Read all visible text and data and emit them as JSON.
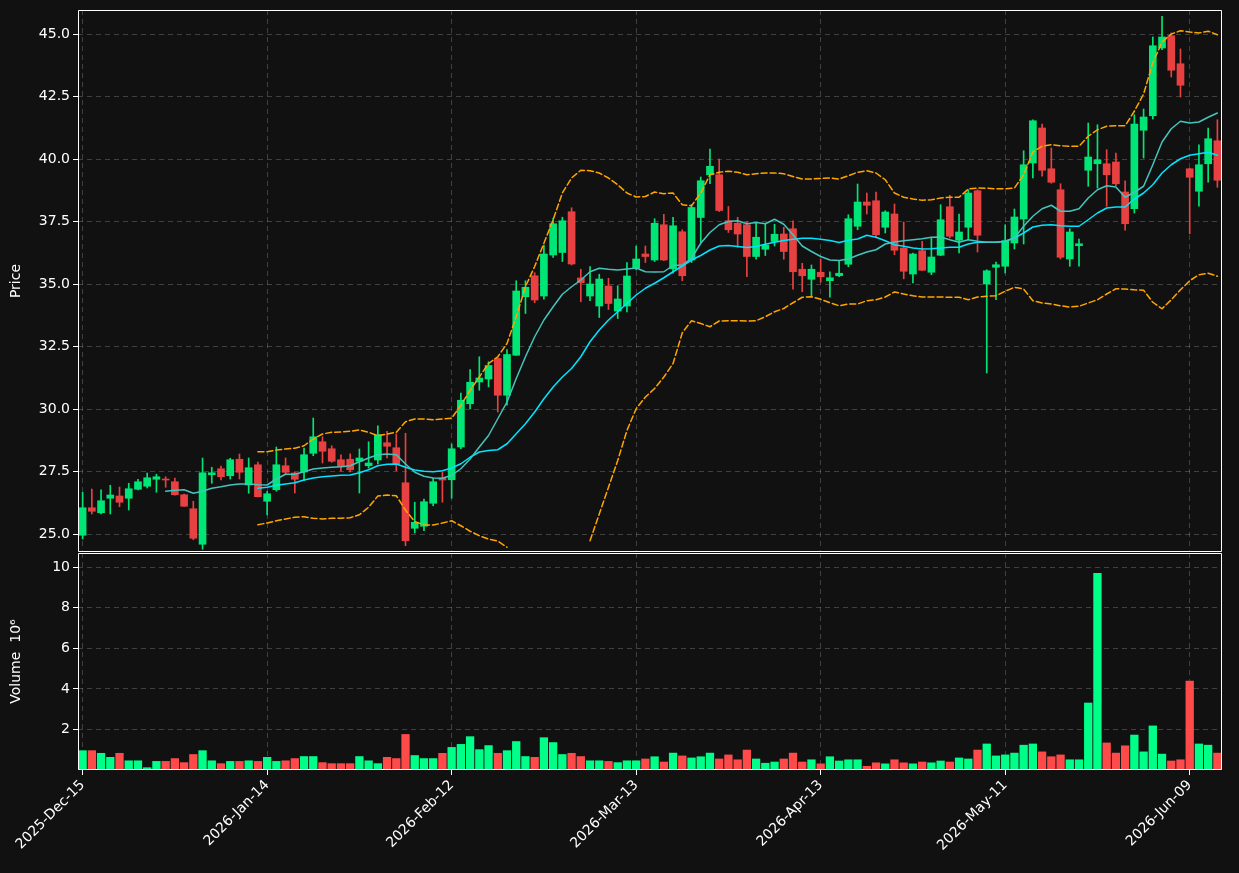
{
  "chart_data": [
    {
      "type": "candlestick",
      "ylabel": "Price",
      "categories": [
        null,
        null,
        null,
        null,
        null,
        null,
        null,
        null,
        null,
        null,
        null,
        null,
        null,
        null,
        null,
        null,
        null,
        null,
        null,
        null,
        null,
        null,
        null,
        null,
        null,
        null,
        null,
        null,
        null,
        null,
        null,
        null,
        null,
        null,
        null,
        null,
        null,
        null,
        null,
        null,
        null,
        null,
        null,
        null,
        null,
        null,
        null,
        null,
        null,
        null,
        null,
        null,
        null,
        null,
        null,
        null,
        null,
        null,
        null,
        null,
        null,
        null,
        null,
        null,
        null,
        null,
        null,
        null,
        null,
        null,
        null,
        null,
        null,
        null,
        null,
        null,
        null,
        null,
        null,
        null,
        null,
        null,
        null,
        null,
        null,
        null,
        null,
        null,
        null,
        null,
        null,
        null,
        null,
        null,
        null,
        null,
        null,
        null,
        null,
        null,
        null,
        null,
        null,
        null,
        null,
        null,
        null,
        null,
        null,
        null,
        null,
        null,
        null,
        null,
        null,
        null,
        null,
        null,
        null,
        null,
        null,
        null,
        null,
        null
      ],
      "ohlc": [
        [
          24.95,
          26.67,
          24.8,
          26.05
        ],
        [
          26.05,
          26.8,
          25.8,
          25.91
        ],
        [
          25.85,
          26.77,
          25.8,
          26.33
        ],
        [
          26.43,
          26.95,
          25.8,
          26.56
        ],
        [
          26.52,
          26.88,
          26.09,
          26.27
        ],
        [
          26.43,
          27.03,
          25.96,
          26.81
        ],
        [
          26.79,
          27.19,
          26.76,
          27.09
        ],
        [
          26.91,
          27.44,
          26.84,
          27.25
        ],
        [
          27.19,
          27.39,
          26.67,
          27.29
        ],
        [
          27.19,
          27.29,
          26.87,
          27.16
        ],
        [
          27.09,
          27.24,
          26.55,
          26.57
        ],
        [
          26.57,
          26.6,
          26.1,
          26.11
        ],
        [
          26.01,
          26.31,
          24.77,
          24.83
        ],
        [
          24.59,
          28.04,
          24.39,
          27.45
        ],
        [
          27.37,
          27.67,
          27.03,
          27.45
        ],
        [
          27.61,
          27.72,
          27.16,
          27.29
        ],
        [
          27.33,
          28.03,
          27.2,
          27.97
        ],
        [
          27.99,
          28.2,
          27.2,
          27.47
        ],
        [
          26.96,
          28.04,
          26.63,
          27.65
        ],
        [
          27.77,
          27.88,
          26.48,
          26.49
        ],
        [
          26.31,
          26.71,
          25.76,
          26.61
        ],
        [
          26.77,
          28.48,
          26.71,
          27.77
        ],
        [
          27.73,
          28.04,
          27.4,
          27.47
        ],
        [
          27.44,
          27.47,
          26.64,
          27.19
        ],
        [
          27.48,
          28.44,
          27.13,
          28.17
        ],
        [
          28.23,
          29.64,
          28.13,
          28.89
        ],
        [
          28.69,
          28.89,
          27.84,
          28.31
        ],
        [
          28.41,
          28.53,
          27.87,
          27.91
        ],
        [
          27.97,
          28.17,
          27.51,
          27.69
        ],
        [
          27.99,
          28.21,
          27.48,
          27.57
        ],
        [
          27.91,
          28.4,
          26.64,
          28.04
        ],
        [
          27.73,
          28.69,
          27.64,
          27.84
        ],
        [
          27.96,
          29.33,
          27.8,
          28.97
        ],
        [
          28.65,
          29.11,
          28.04,
          28.51
        ],
        [
          28.45,
          29.0,
          27.53,
          27.79
        ],
        [
          27.05,
          29.03,
          24.53,
          24.73
        ],
        [
          25.23,
          26.27,
          25.04,
          25.47
        ],
        [
          25.31,
          26.4,
          25.13,
          26.29
        ],
        [
          26.23,
          27.23,
          26.13,
          27.09
        ],
        [
          27.24,
          27.47,
          26.27,
          27.16
        ],
        [
          27.17,
          28.6,
          26.43,
          28.41
        ],
        [
          28.48,
          30.64,
          28.41,
          30.35
        ],
        [
          30.21,
          31.58,
          30.01,
          31.07
        ],
        [
          31.08,
          32.09,
          30.75,
          31.24
        ],
        [
          31.2,
          31.89,
          30.88,
          31.74
        ],
        [
          32.02,
          32.05,
          29.88,
          30.55
        ],
        [
          30.55,
          32.38,
          30.15,
          32.18
        ],
        [
          32.15,
          35.13,
          32.15,
          34.72
        ],
        [
          34.49,
          35.13,
          33.82,
          34.87
        ],
        [
          35.33,
          35.45,
          34.25,
          34.36
        ],
        [
          34.52,
          36.56,
          34.39,
          36.2
        ],
        [
          36.16,
          37.63,
          36.06,
          37.41
        ],
        [
          36.26,
          37.67,
          35.9,
          37.53
        ],
        [
          37.89,
          38.05,
          35.76,
          35.8
        ],
        [
          35.24,
          35.59,
          34.29,
          35.05
        ],
        [
          34.52,
          35.7,
          34.33,
          35.0
        ],
        [
          34.12,
          35.39,
          33.66,
          35.2
        ],
        [
          34.92,
          35.23,
          33.98,
          34.22
        ],
        [
          33.92,
          34.93,
          33.62,
          34.4
        ],
        [
          34.12,
          35.86,
          33.88,
          35.32
        ],
        [
          35.63,
          36.52,
          35.56,
          36.0
        ],
        [
          36.2,
          36.52,
          35.86,
          36.1
        ],
        [
          35.96,
          37.61,
          35.9,
          37.43
        ],
        [
          37.37,
          37.79,
          35.93,
          35.96
        ],
        [
          35.61,
          37.67,
          35.43,
          37.33
        ],
        [
          37.09,
          37.17,
          35.13,
          35.33
        ],
        [
          35.96,
          38.17,
          35.86,
          38.06
        ],
        [
          37.66,
          39.28,
          36.66,
          39.13
        ],
        [
          39.37,
          40.4,
          39.01,
          39.71
        ],
        [
          39.37,
          40.0,
          37.9,
          37.94
        ],
        [
          37.53,
          38.1,
          37.06,
          37.17
        ],
        [
          37.43,
          37.67,
          36.47,
          37.0
        ],
        [
          37.37,
          37.5,
          35.29,
          36.1
        ],
        [
          36.1,
          37.43,
          35.99,
          36.87
        ],
        [
          36.39,
          37.39,
          36.14,
          36.56
        ],
        [
          36.7,
          37.39,
          36.52,
          36.99
        ],
        [
          37.0,
          37.27,
          35.99,
          36.3
        ],
        [
          37.21,
          37.53,
          34.79,
          35.49
        ],
        [
          35.59,
          35.83,
          34.69,
          35.33
        ],
        [
          35.19,
          35.76,
          34.53,
          35.59
        ],
        [
          35.47,
          36.0,
          35.07,
          35.29
        ],
        [
          35.13,
          35.49,
          34.47,
          35.25
        ],
        [
          35.33,
          35.92,
          35.29,
          35.43
        ],
        [
          35.79,
          37.77,
          35.69,
          37.61
        ],
        [
          37.31,
          39.0,
          37.17,
          38.28
        ],
        [
          38.28,
          38.64,
          37.8,
          38.15
        ],
        [
          38.33,
          38.68,
          36.84,
          36.97
        ],
        [
          37.27,
          37.93,
          37.04,
          37.88
        ],
        [
          37.8,
          38.2,
          36.17,
          36.35
        ],
        [
          36.44,
          37.48,
          35.21,
          35.51
        ],
        [
          35.4,
          36.24,
          35.04,
          36.2
        ],
        [
          36.33,
          36.71,
          35.53,
          35.55
        ],
        [
          35.47,
          36.87,
          35.37,
          36.08
        ],
        [
          36.15,
          38.17,
          36.13,
          37.57
        ],
        [
          38.09,
          38.55,
          36.84,
          36.91
        ],
        [
          36.75,
          37.8,
          36.24,
          37.08
        ],
        [
          37.27,
          38.77,
          36.77,
          38.64
        ],
        [
          38.73,
          38.77,
          36.28,
          36.95
        ],
        [
          35.0,
          35.57,
          31.44,
          35.53
        ],
        [
          35.67,
          35.88,
          34.37,
          35.77
        ],
        [
          35.71,
          37.37,
          35.44,
          36.73
        ],
        [
          36.64,
          38.0,
          36.4,
          37.68
        ],
        [
          37.6,
          40.33,
          36.6,
          39.77
        ],
        [
          39.84,
          41.57,
          39.24,
          41.53
        ],
        [
          41.24,
          41.4,
          39.31,
          39.55
        ],
        [
          39.61,
          40.44,
          39.03,
          39.07
        ],
        [
          38.77,
          39.01,
          36.0,
          36.07
        ],
        [
          36.0,
          37.21,
          35.71,
          37.08
        ],
        [
          36.53,
          36.8,
          35.71,
          36.61
        ],
        [
          39.55,
          41.44,
          38.91,
          40.08
        ],
        [
          39.81,
          41.37,
          38.84,
          39.97
        ],
        [
          39.81,
          40.37,
          38.11,
          39.37
        ],
        [
          39.88,
          40.24,
          38.93,
          39.01
        ],
        [
          38.68,
          39.13,
          37.15,
          37.41
        ],
        [
          38.01,
          41.77,
          37.84,
          41.4
        ],
        [
          41.15,
          42.0,
          40.04,
          41.68
        ],
        [
          41.73,
          44.88,
          41.6,
          44.53
        ],
        [
          44.44,
          45.71,
          44.37,
          44.88
        ],
        [
          44.93,
          45.04,
          43.28,
          43.55
        ],
        [
          43.81,
          44.4,
          42.48,
          42.95
        ],
        [
          39.61,
          39.63,
          37.01,
          39.27
        ],
        [
          38.71,
          40.57,
          38.11,
          39.77
        ],
        [
          39.81,
          41.24,
          39.07,
          40.81
        ],
        [
          40.73,
          41.57,
          38.87,
          39.15
        ]
      ],
      "colors": [
        "#00e676",
        "#e84142",
        "#00e676",
        "#00e676",
        "#e84142",
        "#00e676",
        "#00e676",
        "#00e676",
        "#00e676",
        "#e84142",
        "#e84142",
        "#e84142",
        "#e84142",
        "#00e676",
        "#00e676",
        "#e84142",
        "#00e676",
        "#e84142",
        "#00e676",
        "#e84142",
        "#00e676",
        "#00e676",
        "#e84142",
        "#e84142",
        "#00e676",
        "#00e676",
        "#e84142",
        "#e84142",
        "#e84142",
        "#e84142",
        "#00e676",
        "#00e676",
        "#00e676",
        "#e84142",
        "#e84142",
        "#e84142",
        "#00e676",
        "#00e676",
        "#00e676",
        "#e84142",
        "#00e676",
        "#00e676",
        "#00e676",
        "#00e676",
        "#00e676",
        "#e84142",
        "#00e676",
        "#00e676",
        "#00e676",
        "#e84142",
        "#00e676",
        "#00e676",
        "#00e676",
        "#e84142",
        "#e84142",
        "#00e676",
        "#00e676",
        "#e84142",
        "#00e676",
        "#00e676",
        "#00e676",
        "#e84142",
        "#00e676",
        "#e84142",
        "#00e676",
        "#e84142",
        "#00e676",
        "#00e676",
        "#00e676",
        "#e84142",
        "#e84142",
        "#e84142",
        "#e84142",
        "#00e676",
        "#00e676",
        "#00e676",
        "#e84142",
        "#e84142",
        "#e84142",
        "#00e676",
        "#e84142",
        "#00e676",
        "#00e676",
        "#00e676",
        "#00e676",
        "#e84142",
        "#e84142",
        "#00e676",
        "#e84142",
        "#e84142",
        "#00e676",
        "#e84142",
        "#00e676",
        "#00e676",
        "#e84142",
        "#00e676",
        "#00e676",
        "#e84142",
        "#00e676",
        "#00e676",
        "#00e676",
        "#00e676",
        "#00e676",
        "#00e676",
        "#e84142",
        "#e84142",
        "#e84142",
        "#00e676",
        "#00e676",
        "#00e676",
        "#00e676",
        "#e84142",
        "#e84142",
        "#e84142",
        "#00e676",
        "#00e676",
        "#00e676",
        "#00e676",
        "#e84142",
        "#e84142",
        "#e84142",
        "#00e676",
        "#00e676",
        "#e84142"
      ],
      "series": [
        {
          "type": "line",
          "color": "#45c4bd",
          "values": [
            null,
            null,
            null,
            null,
            null,
            null,
            null,
            null,
            null,
            26.71,
            26.75,
            26.77,
            26.63,
            26.71,
            26.83,
            26.89,
            26.96,
            27.0,
            27.0,
            26.97,
            26.96,
            27.2,
            27.39,
            27.39,
            27.49,
            27.6,
            27.64,
            27.67,
            27.69,
            27.73,
            27.89,
            28.04,
            28.17,
            28.2,
            28.17,
            27.8,
            27.47,
            27.31,
            27.24,
            27.23,
            27.35,
            27.61,
            28.0,
            28.48,
            28.94,
            29.61,
            30.28,
            31.22,
            32.09,
            32.89,
            33.56,
            34.09,
            34.59,
            34.89,
            35.16,
            35.49,
            35.63,
            35.59,
            35.56,
            35.6,
            35.64,
            35.49,
            35.48,
            35.49,
            35.74,
            35.76,
            36.03,
            36.63,
            37.06,
            37.37,
            37.5,
            37.53,
            37.41,
            37.46,
            37.41,
            37.59,
            37.39,
            36.97,
            36.52,
            36.3,
            36.1,
            35.96,
            35.94,
            36.0,
            36.15,
            36.28,
            36.37,
            36.6,
            36.68,
            36.73,
            36.77,
            36.81,
            36.87,
            36.88,
            36.77,
            36.67,
            36.77,
            36.71,
            36.67,
            36.67,
            36.71,
            36.84,
            37.31,
            37.71,
            38.01,
            38.15,
            37.91,
            37.91,
            38.01,
            38.44,
            38.77,
            38.93,
            38.88,
            38.47,
            38.67,
            38.91,
            39.77,
            40.68,
            41.21,
            41.51,
            41.44,
            41.48,
            41.67,
            41.84
          ]
        },
        {
          "type": "line",
          "color": "#00e5ff",
          "values": [
            null,
            null,
            null,
            null,
            null,
            null,
            null,
            null,
            null,
            null,
            null,
            null,
            null,
            null,
            null,
            null,
            null,
            null,
            null,
            26.83,
            26.87,
            26.95,
            27.0,
            27.05,
            27.16,
            27.24,
            27.29,
            27.32,
            27.35,
            27.36,
            27.45,
            27.57,
            27.73,
            27.79,
            27.8,
            27.67,
            27.56,
            27.51,
            27.49,
            27.53,
            27.64,
            27.81,
            28.07,
            28.28,
            28.34,
            28.37,
            28.61,
            29.01,
            29.41,
            29.88,
            30.41,
            30.88,
            31.28,
            31.62,
            32.09,
            32.69,
            33.16,
            33.56,
            33.89,
            34.22,
            34.56,
            34.83,
            35.03,
            35.25,
            35.49,
            35.72,
            35.96,
            36.14,
            36.36,
            36.52,
            36.54,
            36.5,
            36.46,
            36.5,
            36.59,
            36.67,
            36.74,
            36.79,
            36.83,
            36.83,
            36.79,
            36.74,
            36.66,
            36.75,
            36.8,
            36.95,
            36.87,
            36.73,
            36.57,
            36.51,
            36.44,
            36.4,
            36.41,
            36.44,
            36.47,
            36.47,
            36.6,
            36.67,
            36.67,
            36.67,
            36.71,
            36.84,
            37.04,
            37.28,
            37.35,
            37.37,
            37.33,
            37.31,
            37.31,
            37.57,
            37.84,
            38.04,
            38.08,
            38.08,
            38.4,
            38.64,
            38.97,
            39.44,
            39.77,
            40.01,
            40.15,
            40.21,
            40.27,
            40.15
          ]
        },
        {
          "type": "line",
          "color": "#ffa500",
          "line_style": "dashed",
          "values": [
            null,
            null,
            null,
            null,
            null,
            null,
            null,
            null,
            null,
            null,
            null,
            null,
            null,
            null,
            null,
            null,
            null,
            null,
            null,
            28.29,
            28.29,
            28.36,
            28.4,
            28.43,
            28.53,
            28.8,
            29.0,
            29.07,
            29.08,
            29.11,
            29.16,
            29.07,
            28.93,
            29.0,
            29.07,
            29.49,
            29.6,
            29.6,
            29.57,
            29.6,
            29.63,
            30.15,
            30.75,
            31.28,
            31.82,
            32.09,
            32.62,
            33.69,
            34.89,
            35.7,
            36.63,
            37.57,
            38.64,
            39.24,
            39.55,
            39.53,
            39.44,
            39.24,
            38.97,
            38.64,
            38.48,
            38.5,
            38.68,
            38.61,
            38.64,
            38.17,
            38.13,
            38.64,
            39.37,
            39.47,
            39.51,
            39.47,
            39.37,
            39.41,
            39.44,
            39.44,
            39.41,
            39.3,
            39.2,
            39.2,
            39.22,
            39.24,
            39.2,
            39.33,
            39.47,
            39.53,
            39.44,
            39.17,
            38.64,
            38.47,
            38.4,
            38.35,
            38.37,
            38.44,
            38.47,
            38.47,
            38.8,
            38.84,
            38.83,
            38.81,
            38.81,
            38.84,
            39.37,
            40.28,
            40.51,
            40.57,
            40.53,
            40.51,
            40.51,
            40.91,
            41.17,
            41.31,
            41.33,
            41.33,
            41.91,
            42.6,
            43.84,
            44.68,
            45.0,
            45.13,
            45.08,
            45.04,
            45.11,
            44.97
          ]
        },
        {
          "type": "line",
          "color": "#ffa500",
          "line_style": "dashed",
          "values": [
            null,
            null,
            null,
            null,
            null,
            null,
            null,
            null,
            null,
            null,
            null,
            null,
            null,
            null,
            null,
            null,
            null,
            null,
            null,
            25.37,
            25.44,
            25.53,
            25.6,
            25.67,
            25.69,
            25.63,
            25.6,
            25.63,
            25.63,
            25.65,
            25.77,
            26.07,
            26.52,
            26.56,
            26.53,
            25.96,
            25.49,
            25.37,
            25.36,
            25.44,
            25.53,
            25.33,
            25.11,
            24.93,
            24.8,
            24.72,
            24.47,
            null,
            null,
            null,
            null,
            null,
            null,
            null,
            null,
            24.73,
            25.8,
            26.87,
            27.94,
            29.14,
            30.01,
            30.48,
            30.82,
            31.28,
            31.82,
            33.05,
            33.53,
            33.42,
            33.29,
            33.52,
            33.53,
            33.53,
            33.52,
            33.53,
            33.69,
            33.89,
            34.02,
            34.25,
            34.47,
            34.49,
            34.39,
            34.25,
            34.13,
            34.2,
            34.2,
            34.33,
            34.37,
            34.48,
            34.68,
            34.6,
            34.53,
            34.48,
            34.48,
            34.48,
            34.47,
            34.47,
            34.37,
            34.48,
            34.51,
            34.53,
            34.71,
            34.87,
            34.8,
            34.33,
            34.24,
            34.2,
            34.13,
            34.08,
            34.11,
            34.24,
            34.37,
            34.6,
            34.81,
            34.8,
            34.77,
            34.75,
            34.27,
            34.01,
            34.37,
            34.77,
            35.13,
            35.37,
            35.43,
            35.31
          ]
        }
      ],
      "ylim": [
        24.28,
        45.96
      ],
      "yticks": [
        {
          "value": 25,
          "label": "25.0"
        },
        {
          "value": 27.5,
          "label": "27.5"
        },
        {
          "value": 30,
          "label": "30.0"
        },
        {
          "value": 32.5,
          "label": "32.5"
        },
        {
          "value": 35,
          "label": "35.0"
        },
        {
          "value": 37.5,
          "label": "37.5"
        },
        {
          "value": 40,
          "label": "40.0"
        },
        {
          "value": 42.5,
          "label": "42.5"
        },
        {
          "value": 45,
          "label": "45.0"
        }
      ],
      "grid": true,
      "tick_labels": "y"
    },
    {
      "type": "bar",
      "ylabel": "Volume  10⁶",
      "categories": [
        "2025-Dec-15",
        null,
        null,
        null,
        null,
        null,
        null,
        null,
        null,
        null,
        null,
        null,
        null,
        null,
        null,
        null,
        null,
        null,
        null,
        null,
        "2026-Jan-14",
        null,
        null,
        null,
        null,
        null,
        null,
        null,
        null,
        null,
        null,
        null,
        null,
        null,
        null,
        null,
        null,
        null,
        null,
        null,
        "2026-Feb-12",
        null,
        null,
        null,
        null,
        null,
        null,
        null,
        null,
        null,
        null,
        null,
        null,
        null,
        null,
        null,
        null,
        null,
        null,
        null,
        "2026-Mar-13",
        null,
        null,
        null,
        null,
        null,
        null,
        null,
        null,
        null,
        null,
        null,
        null,
        null,
        null,
        null,
        null,
        null,
        null,
        null,
        "2026-Apr-13",
        null,
        null,
        null,
        null,
        null,
        null,
        null,
        null,
        null,
        null,
        null,
        null,
        null,
        null,
        null,
        null,
        null,
        null,
        null,
        "2026-May-11",
        null,
        null,
        null,
        null,
        null,
        null,
        null,
        null,
        null,
        null,
        null,
        null,
        null,
        null,
        null,
        null,
        null,
        null,
        null,
        "2026-Jun-09",
        null,
        null,
        null
      ],
      "values": [
        0.97,
        0.97,
        0.84,
        0.64,
        0.84,
        0.47,
        0.47,
        0.13,
        0.44,
        0.44,
        0.58,
        0.38,
        0.78,
        0.97,
        0.47,
        0.33,
        0.44,
        0.44,
        0.47,
        0.44,
        0.64,
        0.44,
        0.47,
        0.58,
        0.68,
        0.68,
        0.38,
        0.33,
        0.33,
        0.33,
        0.68,
        0.47,
        0.33,
        0.64,
        0.58,
        1.77,
        0.73,
        0.58,
        0.58,
        0.84,
        1.13,
        1.28,
        1.66,
        1.02,
        1.22,
        0.84,
        0.97,
        1.42,
        0.68,
        0.64,
        1.61,
        1.37,
        0.78,
        0.84,
        0.68,
        0.47,
        0.47,
        0.44,
        0.38,
        0.47,
        0.47,
        0.56,
        0.67,
        0.41,
        0.85,
        0.71,
        0.61,
        0.67,
        0.85,
        0.56,
        0.76,
        0.52,
        1.0,
        0.56,
        0.35,
        0.41,
        0.56,
        0.85,
        0.41,
        0.52,
        0.32,
        0.67,
        0.46,
        0.52,
        0.52,
        0.2,
        0.37,
        0.32,
        0.52,
        0.37,
        0.32,
        0.41,
        0.37,
        0.46,
        0.41,
        0.61,
        0.56,
        1.0,
        1.3,
        0.71,
        0.76,
        0.85,
        1.24,
        1.3,
        0.91,
        0.67,
        0.76,
        0.52,
        0.52,
        3.32,
        9.72,
        1.35,
        0.85,
        1.21,
        1.74,
        0.91,
        2.19,
        0.8,
        0.46,
        0.52,
        4.4,
        1.3,
        1.24,
        0.85
      ],
      "colors": [
        "#00ff88",
        "#ff4a4a",
        "#00ff88",
        "#00ff88",
        "#ff4a4a",
        "#00ff88",
        "#00ff88",
        "#00ff88",
        "#00ff88",
        "#ff4a4a",
        "#ff4a4a",
        "#ff4a4a",
        "#ff4a4a",
        "#00ff88",
        "#00ff88",
        "#ff4a4a",
        "#00ff88",
        "#ff4a4a",
        "#00ff88",
        "#ff4a4a",
        "#00ff88",
        "#00ff88",
        "#ff4a4a",
        "#ff4a4a",
        "#00ff88",
        "#00ff88",
        "#ff4a4a",
        "#ff4a4a",
        "#ff4a4a",
        "#ff4a4a",
        "#00ff88",
        "#00ff88",
        "#00ff88",
        "#ff4a4a",
        "#ff4a4a",
        "#ff4a4a",
        "#00ff88",
        "#00ff88",
        "#00ff88",
        "#ff4a4a",
        "#00ff88",
        "#00ff88",
        "#00ff88",
        "#00ff88",
        "#00ff88",
        "#ff4a4a",
        "#00ff88",
        "#00ff88",
        "#00ff88",
        "#ff4a4a",
        "#00ff88",
        "#00ff88",
        "#00ff88",
        "#ff4a4a",
        "#ff4a4a",
        "#00ff88",
        "#00ff88",
        "#ff4a4a",
        "#00ff88",
        "#00ff88",
        "#00ff88",
        "#ff4a4a",
        "#00ff88",
        "#ff4a4a",
        "#00ff88",
        "#ff4a4a",
        "#00ff88",
        "#00ff88",
        "#00ff88",
        "#ff4a4a",
        "#ff4a4a",
        "#ff4a4a",
        "#ff4a4a",
        "#00ff88",
        "#00ff88",
        "#00ff88",
        "#ff4a4a",
        "#ff4a4a",
        "#ff4a4a",
        "#00ff88",
        "#ff4a4a",
        "#00ff88",
        "#00ff88",
        "#00ff88",
        "#00ff88",
        "#ff4a4a",
        "#ff4a4a",
        "#00ff88",
        "#ff4a4a",
        "#ff4a4a",
        "#00ff88",
        "#ff4a4a",
        "#00ff88",
        "#00ff88",
        "#ff4a4a",
        "#00ff88",
        "#00ff88",
        "#ff4a4a",
        "#00ff88",
        "#00ff88",
        "#00ff88",
        "#00ff88",
        "#00ff88",
        "#00ff88",
        "#ff4a4a",
        "#ff4a4a",
        "#ff4a4a",
        "#00ff88",
        "#00ff88",
        "#00ff88",
        "#00ff88",
        "#ff4a4a",
        "#ff4a4a",
        "#ff4a4a",
        "#00ff88",
        "#00ff88",
        "#00ff88",
        "#00ff88",
        "#ff4a4a",
        "#ff4a4a",
        "#ff4a4a",
        "#00ff88",
        "#00ff88",
        "#ff4a4a"
      ],
      "ylim": [
        0,
        10.7
      ],
      "yticks": [
        2,
        4,
        6,
        8,
        10
      ],
      "grid": true
    }
  ]
}
